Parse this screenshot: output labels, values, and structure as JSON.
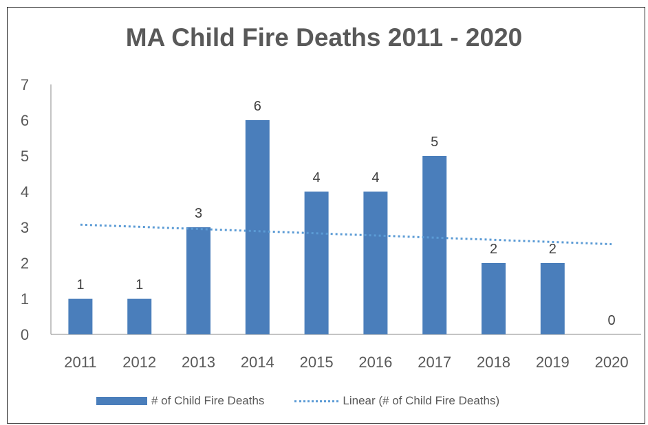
{
  "chart_data": {
    "type": "bar",
    "title": "MA Child Fire Deaths 2011 - 2020",
    "xlabel": "",
    "ylabel": "",
    "categories": [
      "2011",
      "2012",
      "2013",
      "2014",
      "2015",
      "2016",
      "2017",
      "2018",
      "2019",
      "2020"
    ],
    "series": [
      {
        "name": "# of Child Fire Deaths",
        "values": [
          1,
          1,
          3,
          6,
          4,
          4,
          5,
          2,
          2,
          0
        ],
        "color": "#4a7ebb"
      }
    ],
    "trendline": {
      "name": "Linear (# of Child Fire Deaths)",
      "style": "dotted",
      "color": "#5b9bd5"
    },
    "data_labels": true,
    "ylim": [
      0,
      7
    ],
    "yticks": [
      0,
      1,
      2,
      3,
      4,
      5,
      6,
      7
    ],
    "grid": false,
    "legend_position": "bottom"
  }
}
